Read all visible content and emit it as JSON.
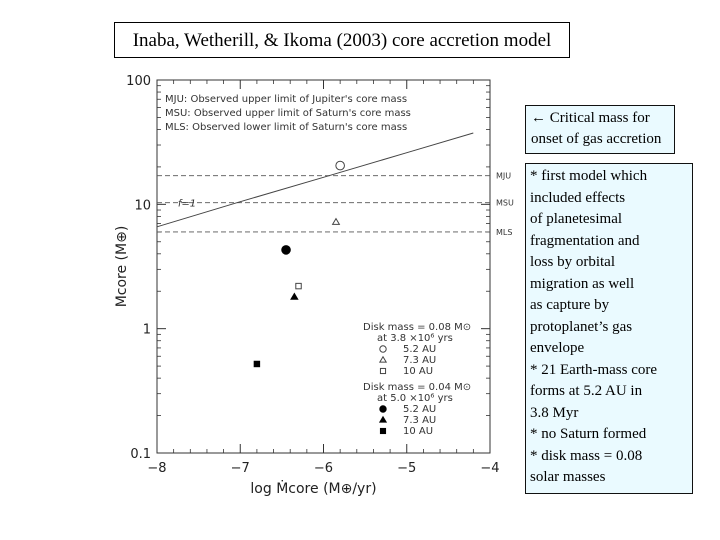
{
  "title": "Inaba, Wetherill, & Ikoma (2003) core accretion model",
  "critical_note": {
    "lines": [
      "← Critical mass for",
      "onset of gas accretion"
    ]
  },
  "notes": [
    "* first model which",
    "included effects",
    "of planetesimal",
    "fragmentation and",
    "loss by orbital",
    "migration as well",
    "as capture by",
    "protoplanet’s gas",
    "envelope",
    "* 21 Earth-mass core",
    "forms at 5.2 AU in",
    "3.8 Myr",
    "* no Saturn formed",
    "* disk mass = 0.08",
    "solar masses"
  ],
  "chart_data": {
    "type": "scatter",
    "xlabel": "log Ṁcore (M⊕/yr)",
    "ylabel": "Mcore (M⊕)",
    "xlim": [
      -8,
      -4
    ],
    "ylim": [
      0.1,
      100
    ],
    "y_scale": "log",
    "x_ticks": [
      -8,
      -7,
      -6,
      -5,
      -4
    ],
    "x_tick_labels": [
      "−8",
      "−7",
      "−6",
      "−5",
      "−4"
    ],
    "y_ticks": [
      0.1,
      1,
      10,
      100
    ],
    "y_tick_labels": [
      "0.1",
      "1",
      "10",
      "100"
    ],
    "legend_top": [
      "MJU: Observed upper limit of Jupiter's core mass",
      "MSU: Observed upper limit of Saturn's core mass",
      "MLS: Observed lower limit of Saturn's core mass"
    ],
    "reference_lines": [
      {
        "label": "MJU",
        "y": 17
      },
      {
        "label": "MSU",
        "y": 10.3
      },
      {
        "label": "MLS",
        "y": 6.0
      }
    ],
    "critical_curve": {
      "label": "f=1",
      "x": [
        -8,
        -7,
        -6,
        -5,
        -4.2
      ],
      "y": [
        6.6,
        10.5,
        16.5,
        26,
        37.5
      ]
    },
    "legend_bottom": {
      "group1_header": [
        "Disk mass = 0.08 M⊙",
        "at 3.8 ×10⁶ yrs"
      ],
      "group2_header": [
        "Disk mass = 0.04 M⊙",
        "at 5.0 ×10⁶ yrs"
      ],
      "entries": [
        "5.2 AU",
        "7.3 AU",
        "10 AU"
      ]
    },
    "series": [
      {
        "name": "Disk mass = 0.08 M⊙ at 3.8 ×10⁶ yrs",
        "points": [
          {
            "x": -5.8,
            "y": 20.5,
            "label": "5.2 AU",
            "marker": "open-circle"
          },
          {
            "x": -5.85,
            "y": 7.2,
            "label": "7.3 AU",
            "marker": "open-triangle"
          },
          {
            "x": -6.3,
            "y": 2.2,
            "label": "10 AU",
            "marker": "open-square"
          }
        ]
      },
      {
        "name": "Disk mass = 0.04 M⊙ at 5.0 ×10⁶ yrs",
        "points": [
          {
            "x": -6.45,
            "y": 4.3,
            "label": "5.2 AU",
            "marker": "filled-circle"
          },
          {
            "x": -6.35,
            "y": 1.8,
            "label": "7.3 AU",
            "marker": "filled-triangle"
          },
          {
            "x": -6.8,
            "y": 0.52,
            "label": "10 AU",
            "marker": "filled-square"
          }
        ]
      }
    ]
  }
}
